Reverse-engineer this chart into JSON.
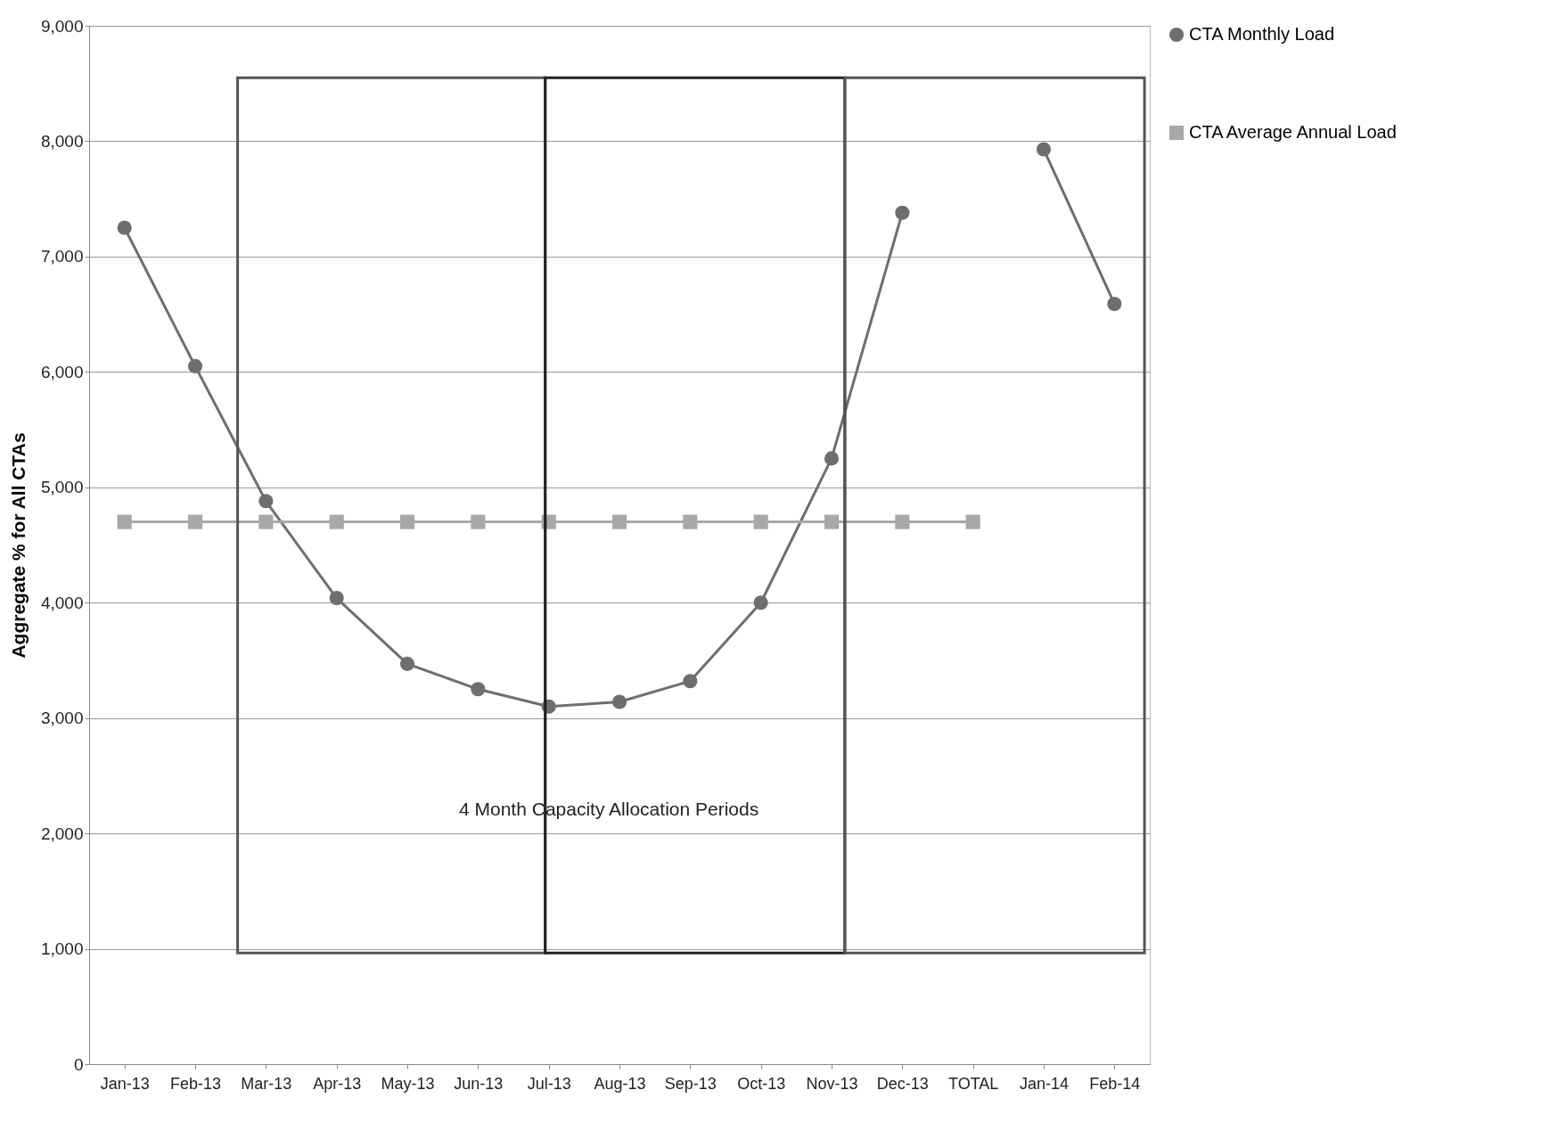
{
  "chart_data": {
    "type": "line",
    "ylabel": "Aggregate % for All CTAs",
    "categories": [
      "Jan-13",
      "Feb-13",
      "Mar-13",
      "Apr-13",
      "May-13",
      "Jun-13",
      "Jul-13",
      "Aug-13",
      "Sep-13",
      "Oct-13",
      "Nov-13",
      "Dec-13",
      "TOTAL",
      "Jan-14",
      "Feb-14"
    ],
    "series": [
      {
        "name": "CTA Monthly Load",
        "color": "#6e6e6e",
        "marker": "circle",
        "values": [
          7250,
          6050,
          4880,
          4040,
          3470,
          3250,
          3100,
          3140,
          3320,
          4000,
          5250,
          7380,
          null,
          7930,
          6590
        ]
      },
      {
        "name": "CTA Average Annual Load",
        "color": "#a8a8a8",
        "marker": "square",
        "values": [
          4700,
          4700,
          4700,
          4700,
          4700,
          4700,
          4700,
          4700,
          4700,
          4700,
          4700,
          4700,
          4700,
          null,
          null
        ]
      }
    ],
    "ylim": [
      0,
      9000
    ],
    "yticks": [
      {
        "value": 0,
        "label": "0"
      },
      {
        "value": 1000,
        "label": "1,000"
      },
      {
        "value": 2000,
        "label": "2,000"
      },
      {
        "value": 3000,
        "label": "3,000"
      },
      {
        "value": 4000,
        "label": "4,000"
      },
      {
        "value": 5000,
        "label": "5,000"
      },
      {
        "value": 6000,
        "label": "6,000"
      },
      {
        "value": 7000,
        "label": "7,000"
      },
      {
        "value": 8000,
        "label": "8,000"
      },
      {
        "value": 9000,
        "label": "9,000"
      }
    ],
    "grid": "y",
    "legend": "right",
    "line_style": "solid",
    "annotations": [
      "4 Month Capacity Allocation Periods"
    ]
  }
}
